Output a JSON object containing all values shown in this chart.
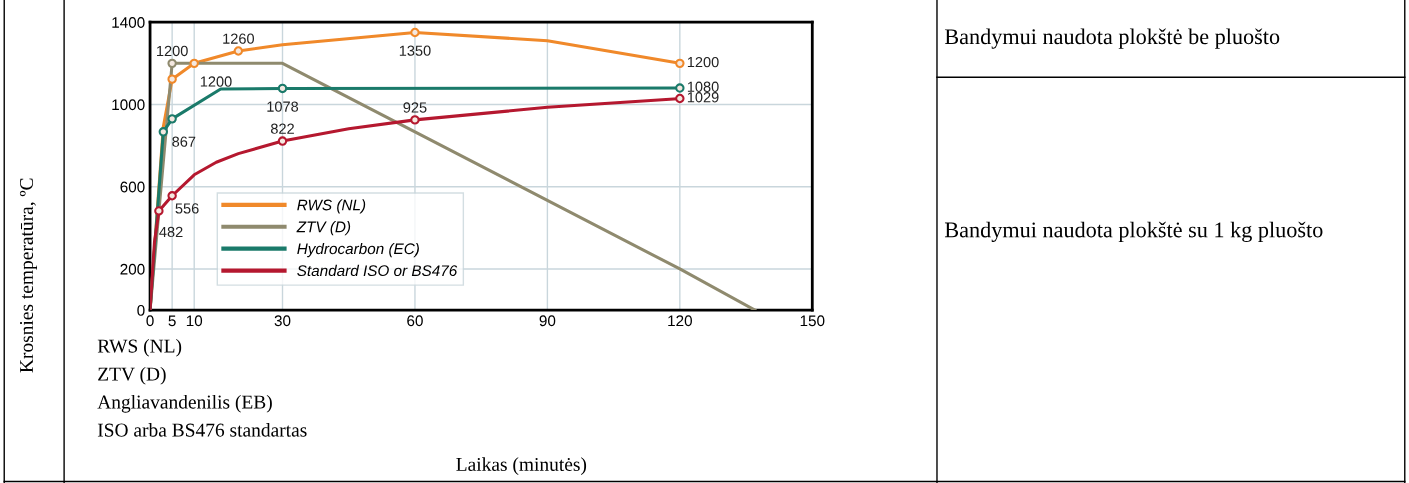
{
  "chart_data": {
    "type": "line",
    "ylabel": "Krosnies temperatūra, ºC",
    "xlim": [
      0,
      150
    ],
    "xticks": [
      0,
      5,
      10,
      30,
      60,
      90,
      120,
      150
    ],
    "ylim": [
      0,
      1400
    ],
    "yticks": [
      0,
      200,
      600,
      1000,
      1400
    ],
    "grid": true,
    "legend": "bottom left",
    "line_style": "solid",
    "series": [
      {
        "name": "RWS (NL)",
        "color": "#f0892a",
        "x": [
          0,
          3,
          5,
          10,
          20,
          30,
          60,
          90,
          120
        ],
        "values": [
          0,
          890,
          1123,
          1200,
          1260,
          1290,
          1350,
          1310,
          1200
        ]
      },
      {
        "name": "ZTV (D)",
        "color": "#8f8a6e",
        "x": [
          0,
          5,
          30,
          120,
          137
        ],
        "values": [
          0,
          1200,
          1200,
          200,
          0
        ]
      },
      {
        "name": "Hydrocarbon (EC)",
        "color": "#1a7a6a",
        "x": [
          0,
          3,
          5,
          16,
          30,
          120
        ],
        "values": [
          0,
          867,
          930,
          1075,
          1078,
          1080
        ]
      },
      {
        "name": "Standard ISO or BS476",
        "color": "#b5182f",
        "x": [
          0,
          1,
          2,
          5,
          10,
          15,
          20,
          30,
          45,
          60,
          90,
          120
        ],
        "values": [
          0,
          330,
          482,
          556,
          658,
          719,
          761,
          822,
          882,
          925,
          986,
          1029
        ]
      },
      {
        "type": "scatter",
        "marker": "circle",
        "color": "#f0892a",
        "x": [
          5,
          10,
          20,
          60,
          120
        ],
        "values": [
          1123,
          1200,
          1260,
          1350,
          1200
        ],
        "value_labels": [
          null,
          "1200",
          "1260",
          "1350",
          "1200"
        ]
      },
      {
        "type": "scatter",
        "marker": "circle",
        "color": "#8f8a6e",
        "x": [
          5
        ],
        "values": [
          1200
        ],
        "value_labels": [
          "1200"
        ]
      },
      {
        "type": "scatter",
        "marker": "circle",
        "color": "#1a7a6a",
        "x": [
          3,
          5,
          30,
          120
        ],
        "values": [
          867,
          930,
          1078,
          1080
        ],
        "value_labels": [
          "867",
          null,
          "1078",
          "1080"
        ]
      },
      {
        "type": "scatter",
        "marker": "circle",
        "color": "#b5182f",
        "x": [
          2,
          5,
          30,
          60,
          120
        ],
        "values": [
          482,
          556,
          822,
          925,
          1029
        ],
        "value_labels": [
          "482",
          "556",
          "822",
          "925",
          "1029"
        ]
      }
    ],
    "annotations": [
      "RWS (NL)",
      "ZTV (D)",
      "Angliavandenilis (EB)",
      "ISO arba BS476 standartas",
      "Bandymui naudota plokštė be pluošto",
      "Bandymui naudota plokštė su 1 kg pluošto",
      "Laikas (minutės)"
    ]
  }
}
